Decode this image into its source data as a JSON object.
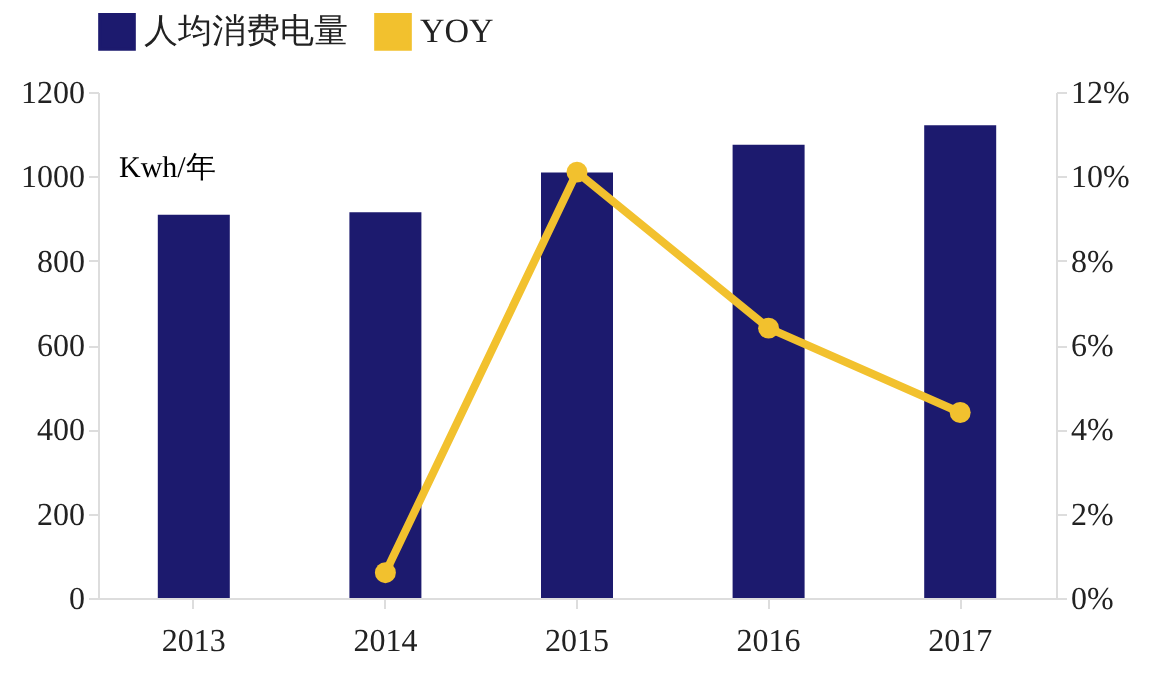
{
  "chart_data": {
    "type": "bar",
    "categories": [
      "2013",
      "2014",
      "2015",
      "2016",
      "2017"
    ],
    "series": [
      {
        "name": "人均消费电量",
        "color": "#1c1a6e",
        "values": [
          909,
          915,
          1009,
          1075,
          1121
        ]
      },
      {
        "name": "YOY",
        "type": "line",
        "axis": "y2",
        "color": "#f2c12e",
        "values": [
          null,
          0.6,
          10.1,
          6.4,
          4.4
        ]
      }
    ],
    "ylabel": "Kwh/年",
    "ylim": [
      0,
      1200
    ],
    "yticks": [
      0,
      200,
      400,
      600,
      800,
      1000,
      1200
    ],
    "y2lim": [
      0,
      12
    ],
    "y2ticks": [
      {
        "value": 0,
        "label": "0%"
      },
      {
        "value": 2,
        "label": "2%"
      },
      {
        "value": 4,
        "label": "4%"
      },
      {
        "value": 6,
        "label": "6%"
      },
      {
        "value": 8,
        "label": "8%"
      },
      {
        "value": 10,
        "label": "10%"
      },
      {
        "value": 12,
        "label": "12%"
      }
    ],
    "grid": false,
    "legend": "top",
    "marker": "circle",
    "line_style": "solid"
  }
}
